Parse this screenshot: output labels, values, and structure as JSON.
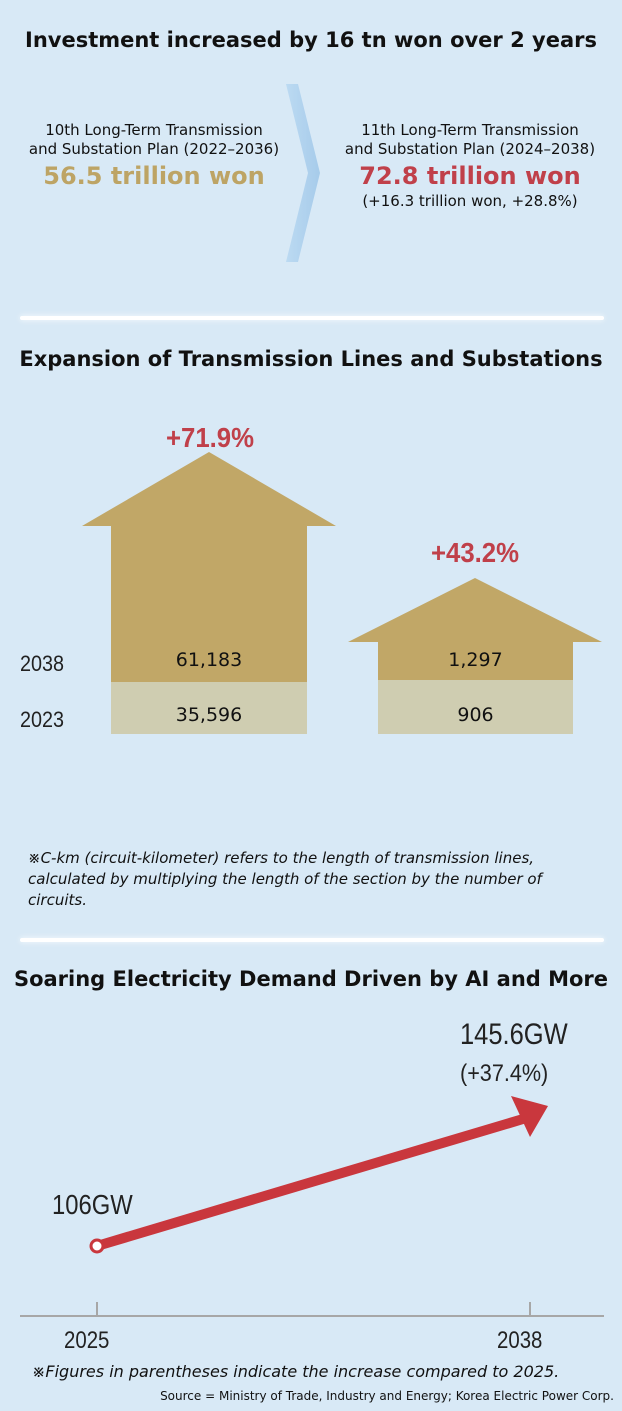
{
  "section1": {
    "title": "Investment increased by 16 tn won over 2 years",
    "plan10": {
      "label_line1": "10th Long-Term Transmission",
      "label_line2": "and Substation Plan (2022–2036)",
      "value": "56.5 trillion won"
    },
    "plan11": {
      "label_line1": "11th Long-Term Transmission",
      "label_line2": "and Substation Plan (2024–2038)",
      "value": "72.8 trillion won",
      "change": "(+16.3 trillion won, +28.8%)"
    }
  },
  "section2": {
    "title": "Expansion of Transmission Lines and Substations",
    "note_line1": "※C-km (circuit-kilometer) refers to the length of transmission lines,",
    "note_line2": "calculated by multiplying the length of the section by the number of",
    "note_line3": "circuits."
  },
  "section3": {
    "title": "Soaring Electricity Demand Driven by AI and More",
    "note": "※Figures in parentheses indicate the increase compared to 2025.",
    "source": "Source = Ministry of Trade, Industry and Energy; Korea Electric Power Corp."
  },
  "chart_data": [
    {
      "type": "bar",
      "title": "Expansion of Transmission Lines and Substations",
      "series": [
        {
          "name": "2038",
          "values": [
            61183,
            1297
          ],
          "labels": [
            "61,183",
            "1,297"
          ]
        },
        {
          "name": "2023",
          "values": [
            35596,
            906
          ],
          "labels": [
            "35,596",
            "906"
          ]
        }
      ],
      "increase_labels": [
        "+71.9%",
        "+43.2%"
      ],
      "colors": {
        "2038": "#c1a767",
        "2023": "#cfcdb1",
        "increase": "#c0404a"
      }
    },
    {
      "type": "line",
      "title": "Soaring Electricity Demand Driven by AI and More",
      "x": [
        "2025",
        "2038"
      ],
      "values": [
        106,
        145.6
      ],
      "labels": [
        "106GW",
        "145.6GW"
      ],
      "increase_label": "(+37.4%)",
      "color": "#c9373d"
    }
  ]
}
